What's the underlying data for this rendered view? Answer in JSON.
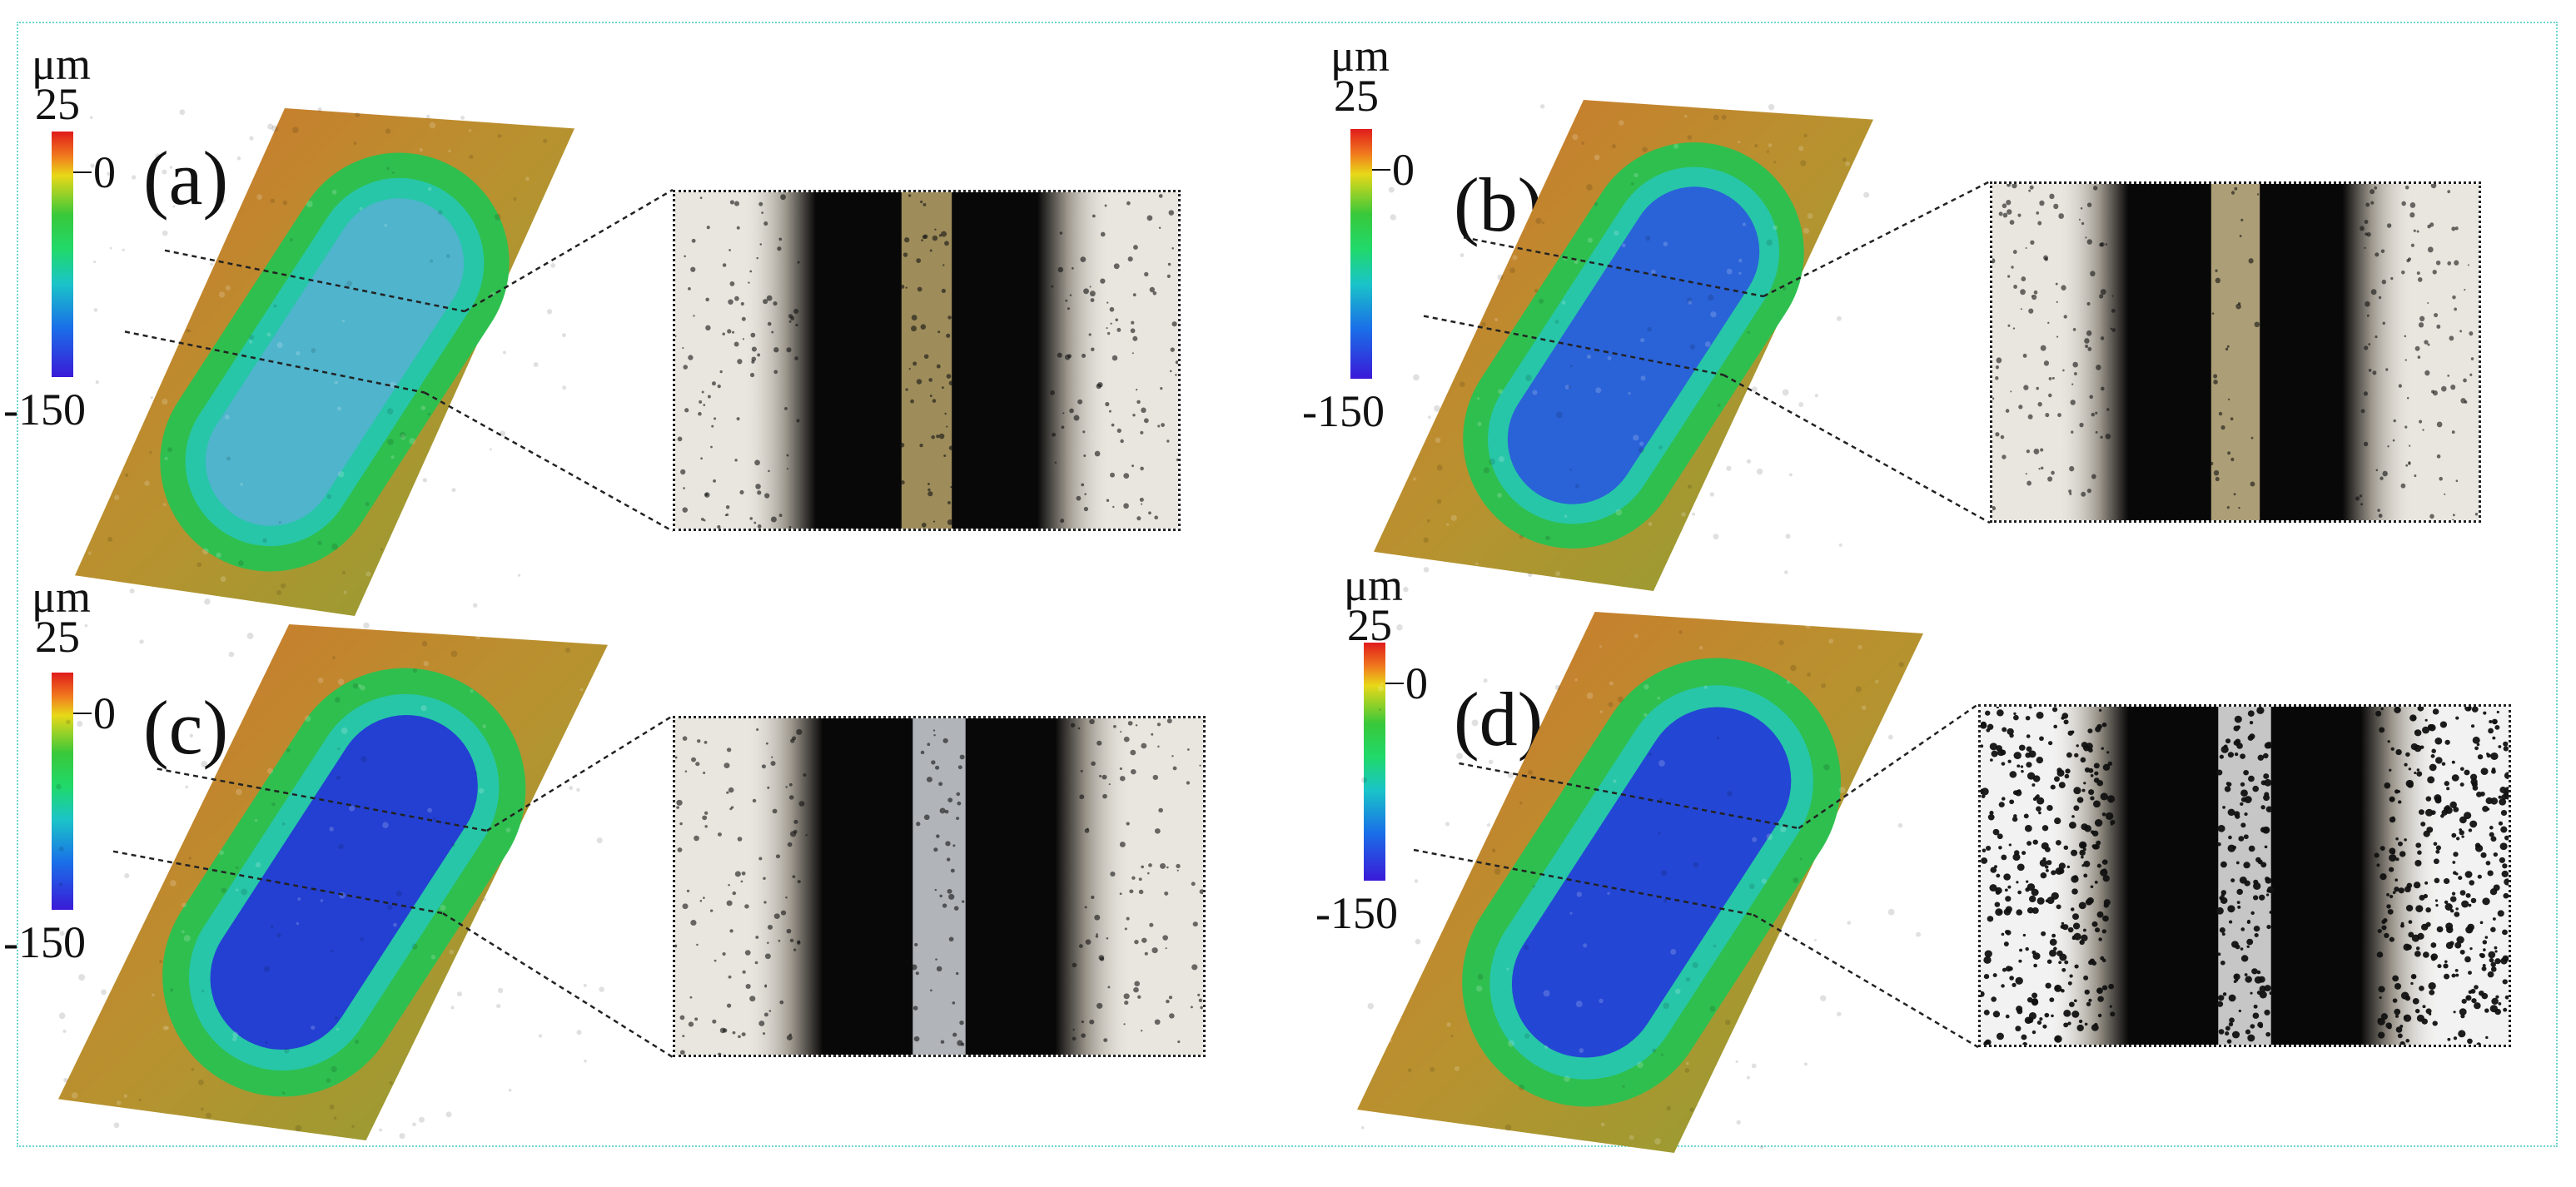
{
  "colorbar": {
    "unit": "μm",
    "max_label": "25",
    "zero_label": "0",
    "min_label": "-150"
  },
  "panels": [
    {
      "id": "a",
      "label": "(a)",
      "depth_color": "#4fb4cc",
      "ridge_style": "light"
    },
    {
      "id": "b",
      "label": "(b)",
      "depth_color": "#2a62d8",
      "ridge_style": "light-fibrous"
    },
    {
      "id": "c",
      "label": "(c)",
      "depth_color": "#2340d2",
      "ridge_style": "silvery"
    },
    {
      "id": "d",
      "label": "(d)",
      "depth_color": "#2446d4",
      "ridge_style": "speckled"
    }
  ]
}
